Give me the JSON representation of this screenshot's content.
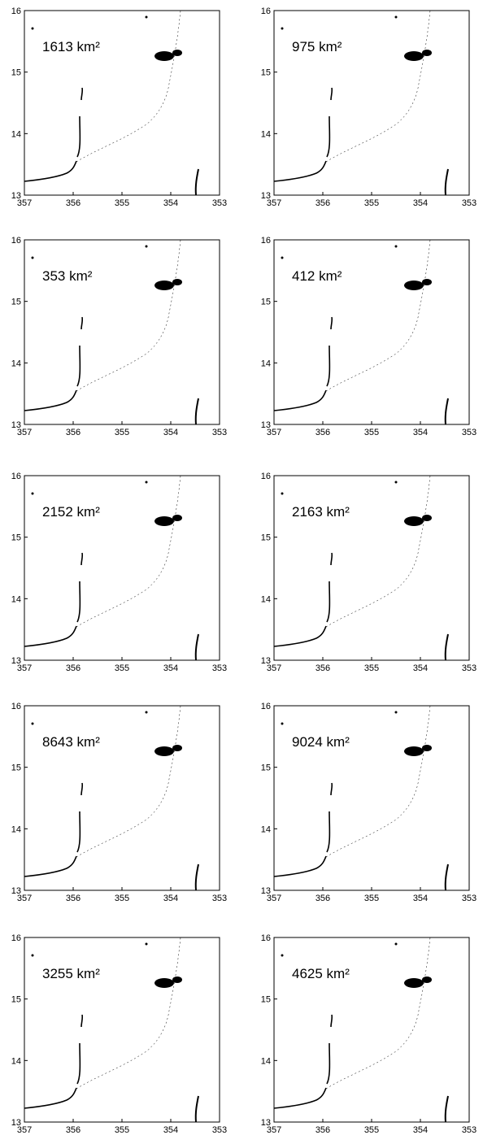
{
  "panels": [
    {
      "label": "1613 km²"
    },
    {
      "label": "975 km²"
    },
    {
      "label": "353 km²"
    },
    {
      "label": "412 km²"
    },
    {
      "label": "2152 km²"
    },
    {
      "label": "2163 km²"
    },
    {
      "label": "8643 km²"
    },
    {
      "label": "9024 km²"
    },
    {
      "label": "3255 km²"
    },
    {
      "label": "4625 km²"
    }
  ],
  "xticks": [
    357,
    356,
    355,
    354,
    353
  ],
  "yticks": [
    13,
    14,
    15,
    16
  ]
}
